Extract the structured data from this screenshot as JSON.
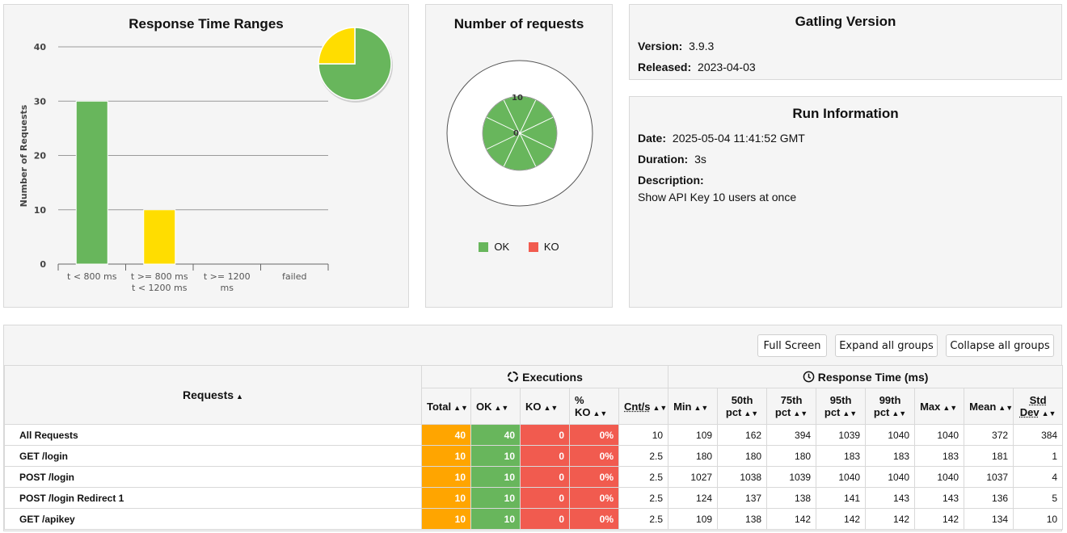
{
  "response_time_ranges": {
    "title": "Response Time Ranges",
    "chart_data": {
      "type": "bar",
      "ylabel": "Number of Requests",
      "ylim": [
        0,
        40
      ],
      "yticks": [
        0,
        10,
        20,
        30,
        40
      ],
      "categories": [
        [
          "t < 800 ms"
        ],
        [
          "t >= 800 ms",
          "t < 1200 ms"
        ],
        [
          "t >= 1200",
          "ms"
        ],
        [
          "failed"
        ]
      ],
      "values": [
        30,
        10,
        0,
        0
      ],
      "colors": [
        "#68b65c",
        "#ffdd00",
        "#f15b4f",
        "#e0e0e0"
      ],
      "pie": {
        "values": [
          30,
          10
        ],
        "colors": [
          "#68b65c",
          "#ffdd00"
        ]
      }
    }
  },
  "number_of_requests": {
    "title": "Number of requests",
    "chart_data": {
      "type": "polar",
      "scale_max_label": "10",
      "scale_min_label": "0",
      "values": [
        10,
        10,
        10,
        10
      ],
      "legend": [
        {
          "label": "OK",
          "color": "#68b65c"
        },
        {
          "label": "KO",
          "color": "#f15b4f"
        }
      ]
    }
  },
  "gatling_version": {
    "title": "Gatling Version",
    "version_label": "Version:",
    "version": "3.9.3",
    "released_label": "Released:",
    "released": "2023-04-03"
  },
  "run_information": {
    "title": "Run Information",
    "date_label": "Date:",
    "date": "2025-05-04 11:41:52 GMT",
    "duration_label": "Duration:",
    "duration": "3s",
    "description_label": "Description:",
    "description": "Show API Key 10 users at once"
  },
  "toolbar": {
    "full_screen": "Full Screen",
    "expand_all": "Expand all groups",
    "collapse_all": "Collapse all groups"
  },
  "table": {
    "requests_header": "Requests",
    "executions_header": "Executions",
    "response_time_header": "Response Time (ms)",
    "columns": {
      "total": "Total",
      "ok": "OK",
      "ko": "KO",
      "pct_ko": "% KO",
      "cnt_s": "Cnt/s",
      "min": "Min",
      "p50a": "50th",
      "p50b": "pct",
      "p75a": "75th",
      "p75b": "pct",
      "p95a": "95th",
      "p95b": "pct",
      "p99a": "99th",
      "p99b": "pct",
      "max": "Max",
      "mean": "Mean",
      "stda": "Std",
      "stdb": "Dev"
    },
    "rows": [
      {
        "name": "All Requests",
        "total": "40",
        "ok": "40",
        "ko": "0",
        "pct_ko": "0%",
        "cnt_s": "10",
        "min": "109",
        "p50": "162",
        "p75": "394",
        "p95": "1039",
        "p99": "1040",
        "max": "1040",
        "mean": "372",
        "std": "384"
      },
      {
        "name": "GET /login",
        "total": "10",
        "ok": "10",
        "ko": "0",
        "pct_ko": "0%",
        "cnt_s": "2.5",
        "min": "180",
        "p50": "180",
        "p75": "180",
        "p95": "183",
        "p99": "183",
        "max": "183",
        "mean": "181",
        "std": "1"
      },
      {
        "name": "POST /login",
        "total": "10",
        "ok": "10",
        "ko": "0",
        "pct_ko": "0%",
        "cnt_s": "2.5",
        "min": "1027",
        "p50": "1038",
        "p75": "1039",
        "p95": "1040",
        "p99": "1040",
        "max": "1040",
        "mean": "1037",
        "std": "4"
      },
      {
        "name": "POST /login Redirect 1",
        "total": "10",
        "ok": "10",
        "ko": "0",
        "pct_ko": "0%",
        "cnt_s": "2.5",
        "min": "124",
        "p50": "137",
        "p75": "138",
        "p95": "141",
        "p99": "143",
        "max": "143",
        "mean": "136",
        "std": "5"
      },
      {
        "name": "GET /apikey",
        "total": "10",
        "ok": "10",
        "ko": "0",
        "pct_ko": "0%",
        "cnt_s": "2.5",
        "min": "109",
        "p50": "138",
        "p75": "142",
        "p95": "142",
        "p99": "142",
        "max": "142",
        "mean": "134",
        "std": "10"
      }
    ]
  }
}
